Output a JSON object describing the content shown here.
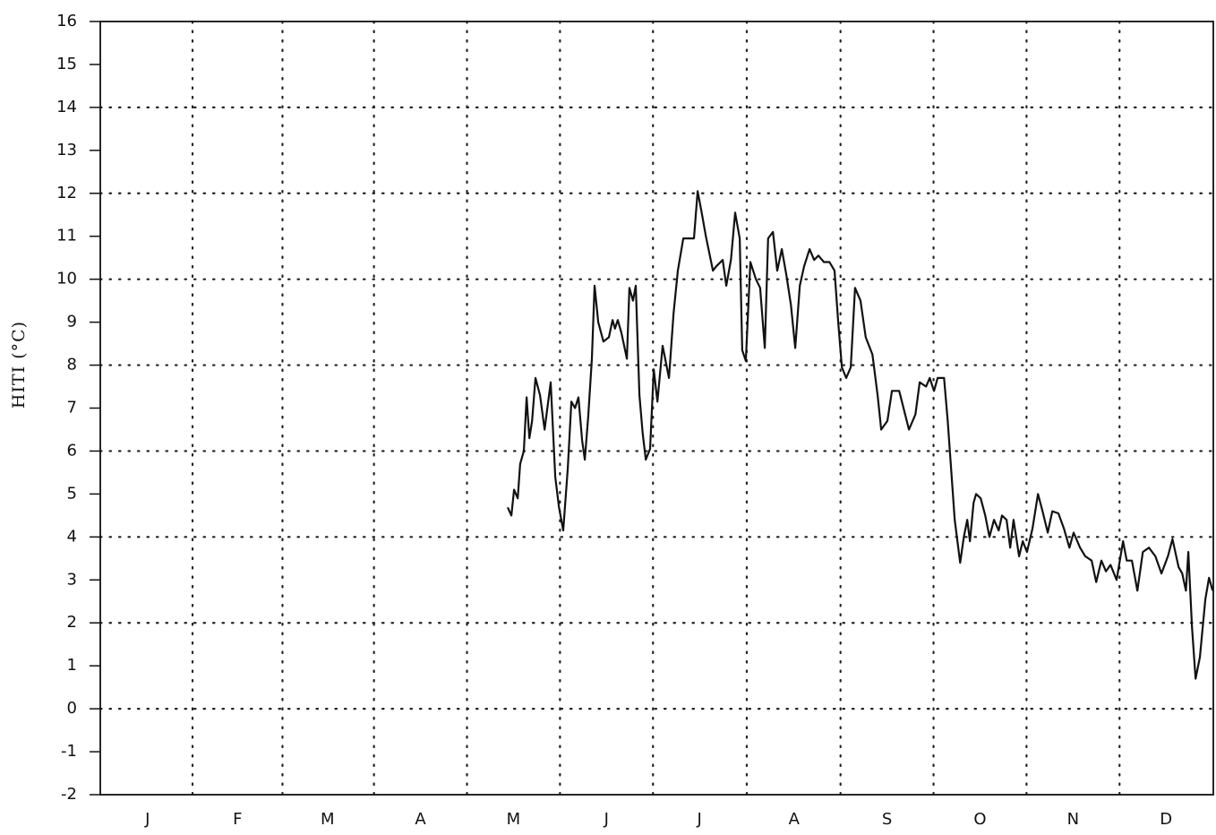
{
  "chart_data": {
    "type": "line",
    "y_label": "HITI (°C)",
    "xlim": [
      0,
      365
    ],
    "xticks": [
      {
        "value": 15.5,
        "label": "J"
      },
      {
        "value": 45,
        "label": "F"
      },
      {
        "value": 74.5,
        "label": "M"
      },
      {
        "value": 105,
        "label": "A"
      },
      {
        "value": 135.5,
        "label": "M"
      },
      {
        "value": 166,
        "label": "J"
      },
      {
        "value": 196.5,
        "label": "J"
      },
      {
        "value": 227.5,
        "label": "A"
      },
      {
        "value": 258,
        "label": "S"
      },
      {
        "value": 288.5,
        "label": "O"
      },
      {
        "value": 319,
        "label": "N"
      },
      {
        "value": 349.5,
        "label": "D"
      }
    ],
    "ylim": [
      -2,
      16
    ],
    "yticks": [
      -2,
      -1,
      0,
      1,
      2,
      3,
      4,
      5,
      6,
      7,
      8,
      9,
      10,
      11,
      12,
      13,
      14,
      15,
      16
    ],
    "grid": true,
    "series": [
      {
        "color": "#111111",
        "x": [
          133.6,
          134.8,
          135.7,
          136.9,
          137.7,
          138.9,
          139.8,
          140.7,
          141.6,
          142.7,
          144.2,
          145.7,
          147.7,
          149.2,
          150.4,
          151.8,
          153.3,
          154.5,
          155.7,
          156.8,
          158,
          158.9,
          160,
          161.2,
          162.1,
          163.3,
          165,
          166.8,
          168,
          168.8,
          169.7,
          170.9,
          172.7,
          173.5,
          174.7,
          175.6,
          176.8,
          177.9,
          178.9,
          180.3,
          181.5,
          182.7,
          184.4,
          186.5,
          188,
          189.4,
          191.2,
          194.7,
          195.9,
          197.1,
          198.6,
          200.9,
          202,
          204.1,
          205.3,
          206.8,
          208.2,
          209.7,
          210.5,
          211.7,
          213.2,
          215,
          216.4,
          217.9,
          219,
          220.6,
          222,
          223.5,
          225,
          226.5,
          227.9,
          229.4,
          230.8,
          232.6,
          234.1,
          235.5,
          237.3,
          239.1,
          240.8,
          242,
          243.2,
          244.6,
          246.1,
          247.5,
          249.3,
          251,
          253.2,
          254.9,
          256.1,
          258.1,
          259.6,
          262,
          265.2,
          267.3,
          268.7,
          270.8,
          272,
          273.4,
          274.6,
          276.7,
          277.9,
          280.2,
          282,
          283.2,
          284.3,
          285.2,
          286.4,
          287.2,
          288.7,
          290.2,
          291.6,
          293.1,
          294.6,
          295.7,
          297.2,
          298.4,
          299.5,
          301.3,
          302.5,
          303.9,
          305.7,
          307.5,
          309,
          310.7,
          312.2,
          314.2,
          316,
          317.8,
          319.2,
          321.3,
          323,
          325.1,
          326.6,
          328.3,
          329.8,
          331.3,
          333.3,
          335.4,
          336.6,
          338.3,
          340.1,
          341.9,
          343.9,
          346,
          348,
          350.1,
          351.6,
          353.6,
          354.8,
          356,
          356.8,
          358,
          359.2,
          360.6,
          362.4,
          363.6,
          364.8
        ],
        "values": [
          4.69,
          4.5,
          5.1,
          4.9,
          5.7,
          6.0,
          7.25,
          6.3,
          6.7,
          7.7,
          7.3,
          6.5,
          7.6,
          5.4,
          4.7,
          4.15,
          5.6,
          7.15,
          7.0,
          7.25,
          6.25,
          5.8,
          6.8,
          8.15,
          9.85,
          9.0,
          8.55,
          8.65,
          9.05,
          8.85,
          9.05,
          8.75,
          8.15,
          9.8,
          9.5,
          9.85,
          7.3,
          6.4,
          5.8,
          6.05,
          7.9,
          7.15,
          8.45,
          7.7,
          9.2,
          10.2,
          10.95,
          10.95,
          12.05,
          11.6,
          11.0,
          10.2,
          10.3,
          10.45,
          9.85,
          10.45,
          11.55,
          10.95,
          8.35,
          8.1,
          10.4,
          10.0,
          9.8,
          8.4,
          10.95,
          11.1,
          10.2,
          10.7,
          10.1,
          9.4,
          8.4,
          9.85,
          10.3,
          10.7,
          10.45,
          10.55,
          10.4,
          10.4,
          10.2,
          9.0,
          7.95,
          7.7,
          7.95,
          9.8,
          9.5,
          8.65,
          8.25,
          7.3,
          6.5,
          6.7,
          7.4,
          7.4,
          6.5,
          6.85,
          7.6,
          7.5,
          7.7,
          7.4,
          7.7,
          7.7,
          6.7,
          4.4,
          3.4,
          4.0,
          4.4,
          3.9,
          4.8,
          5.0,
          4.9,
          4.5,
          4.0,
          4.4,
          4.15,
          4.5,
          4.4,
          3.75,
          4.4,
          3.55,
          3.9,
          3.65,
          4.2,
          5.0,
          4.6,
          4.1,
          4.6,
          4.55,
          4.2,
          3.75,
          4.1,
          3.75,
          3.55,
          3.45,
          2.95,
          3.45,
          3.2,
          3.35,
          3.0,
          3.9,
          3.45,
          3.45,
          2.75,
          3.65,
          3.75,
          3.55,
          3.15,
          3.55,
          3.95,
          3.3,
          3.15,
          2.75,
          3.65,
          1.9,
          0.7,
          1.2,
          2.55,
          3.05,
          2.75
        ]
      }
    ]
  }
}
